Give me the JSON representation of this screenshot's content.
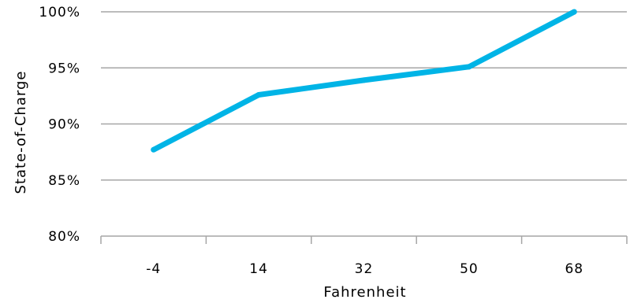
{
  "chart_data": {
    "type": "line",
    "title": "",
    "xlabel": "Fahrenheit",
    "ylabel": "State-of-Charge",
    "categories": [
      "-4",
      "14",
      "32",
      "50",
      "68"
    ],
    "series": [
      {
        "values": [
          87.7,
          92.6,
          93.9,
          95.1,
          100.0
        ],
        "color": "#00b4e6"
      }
    ],
    "yticks": [
      "80%",
      "85%",
      "90%",
      "95%",
      "100%"
    ],
    "ylim": [
      80,
      100
    ],
    "grid": "horizontal",
    "legend": "none",
    "colors": {
      "line": "#00b4e6",
      "grid": "#a6a6a6",
      "axis": "#a6a6a6",
      "text": "#000000"
    }
  }
}
